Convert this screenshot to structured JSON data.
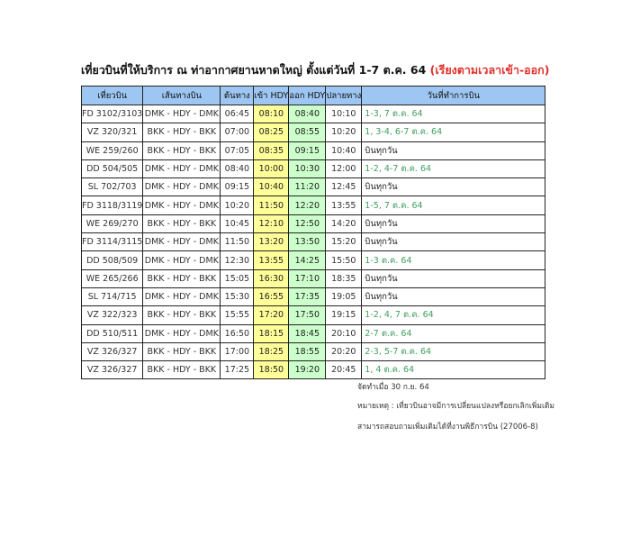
{
  "title": {
    "main": "เที่ยวบินที่ให้บริการ ณ ท่าอากาศยานหาดใหญ่ ตั้งแต่วันที่ 1-7 ต.ค. 64",
    "highlight": "(เรียงตามเวลาเข้า-ออก)"
  },
  "headers": [
    "เที่ยวบิน",
    "เส้นทางบิน",
    "ต้นทาง",
    "เข้า HDY",
    "ออก HDY",
    "ปลายทาง",
    "วันที่ทำการบิน"
  ],
  "rows": [
    [
      "FD 3102/3103",
      "DMK - HDY - DMK",
      "06:45",
      "08:10",
      "08:40",
      "10:10",
      "1-3, 7 ต.ค. 64"
    ],
    [
      "VZ 320/321",
      "BKK - HDY - BKK",
      "07:00",
      "08:25",
      "08:55",
      "10:20",
      "1, 3-4, 6-7 ต.ค. 64"
    ],
    [
      "WE 259/260",
      "BKK - HDY - BKK",
      "07:05",
      "08:35",
      "09:15",
      "10:40",
      "บินทุกวัน"
    ],
    [
      "DD 504/505",
      "DMK - HDY - DMK",
      "08:40",
      "10:00",
      "10:30",
      "12:00",
      "1-2, 4-7  ต.ค. 64"
    ],
    [
      "SL 702/703",
      "DMK - HDY - DMK",
      "09:15",
      "10:40",
      "11:20",
      "12:45",
      "บินทุกวัน"
    ],
    [
      "FD 3118/3119",
      "DMK - HDY - DMK",
      "10:20",
      "11:50",
      "12:20",
      "13:55",
      "1-5, 7 ต.ค. 64"
    ],
    [
      "WE 269/270",
      "BKK - HDY - BKK",
      "10:45",
      "12:10",
      "12:50",
      "14:20",
      "บินทุกวัน"
    ],
    [
      "FD 3114/3115",
      "DMK - HDY - DMK",
      "11:50",
      "13:20",
      "13:50",
      "15:20",
      "บินทุกวัน"
    ],
    [
      "DD 508/509",
      "DMK - HDY - DMK",
      "12:30",
      "13:55",
      "14:25",
      "15:50",
      "1-3 ต.ค. 64"
    ],
    [
      "WE 265/266",
      "BKK - HDY - BKK",
      "15:05",
      "16:30",
      "17:10",
      "18:35",
      "บินทุกวัน"
    ],
    [
      "SL 714/715",
      "DMK - HDY - DMK",
      "15:30",
      "16:55",
      "17:35",
      "19:05",
      "บินทุกวัน"
    ],
    [
      "VZ 322/323",
      "BKK - HDY - BKK",
      "15:55",
      "17:20",
      "17:50",
      "19:15",
      "1-2, 4, 7 ต.ค. 64"
    ],
    [
      "DD 510/511",
      "DMK - HDY - DMK",
      "16:50",
      "18:15",
      "18:45",
      "20:10",
      "2-7 ต.ค. 64"
    ],
    [
      "VZ 326/327",
      "BKK - HDY - BKK",
      "17:00",
      "18:25",
      "18:55",
      "20:20",
      "2-3, 5-7 ต.ค. 64"
    ],
    [
      "VZ 326/327",
      "BKK - HDY - BKK",
      "17:25",
      "18:50",
      "19:20",
      "20:45",
      "1, 4 ต.ค. 64"
    ]
  ],
  "notes": [
    "จัดทำเมื่อ 30 ก.ย. 64",
    "หมายเหตุ : เที่ยวบินอาจมีการเปลี่ยนแปลงหรือยกเลิกเพิ่มเติม",
    "สามารถสอบถามเพิ่มเติมได้ที่งานพิธีการบิน (27006-8)"
  ],
  "colors": {
    "header": "#9ec6f2",
    "arrival": "#ffff99",
    "departure": "#ccffcc",
    "date_text": "#3f9f5f",
    "highlight": "#e0302a"
  }
}
